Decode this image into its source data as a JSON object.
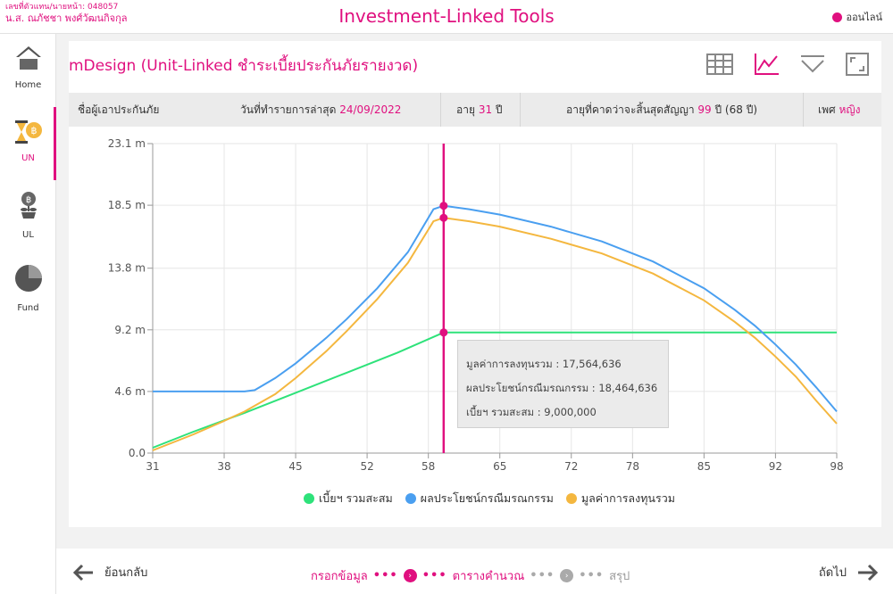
{
  "header": {
    "agent_code": "เลขที่ตัวแทน/นายหน้า: 048057",
    "agent_name": "น.ส. ณภัชชา  พงศ์วัฒนกิจกุล",
    "app_title": "Investment-Linked Tools",
    "status_label": "ออนไลน์",
    "status_color": "#e0107f"
  },
  "sidebar": {
    "items": [
      {
        "label": "Home",
        "icon": "home-icon",
        "active": false
      },
      {
        "label": "UN",
        "icon": "hourglass-coin-icon",
        "active": true
      },
      {
        "label": "UL",
        "icon": "money-plant-icon",
        "active": false
      },
      {
        "label": "Fund",
        "icon": "pie-chart-icon",
        "active": false
      }
    ]
  },
  "page": {
    "title": "mDesign (Unit-Linked ชำระเบี้ยประกันภัยรายงวด)",
    "tools": [
      "table-icon",
      "line-chart-icon",
      "filter-icon",
      "expand-icon"
    ]
  },
  "info": {
    "insured_label": "ชื่อผู้เอาประกันภัย",
    "date_label": "วันที่ทำรายการล่าสุด",
    "date_value": "24/09/2022",
    "age_label": "อายุ",
    "age_value": "31",
    "age_unit": "ปี",
    "end_age_label": "อายุที่คาดว่าจะสิ้นสุดสัญญา",
    "end_age_value": "99",
    "end_age_unit": "ปี (68 ปี)",
    "gender_label": "เพศ",
    "gender_value": "หญิง"
  },
  "tooltip": {
    "line1": "มูลค่าการลงทุนรวม : 17,564,636",
    "line2": "ผลประโยชน์กรณีมรณกรรม : 18,464,636",
    "line3": "เบี้ยฯ รวมสะสม : 9,000,000"
  },
  "chart_data": {
    "type": "line",
    "xlabel": "",
    "ylabel": "",
    "x_ticks": [
      31,
      38,
      45,
      52,
      58,
      65,
      72,
      78,
      85,
      92,
      98
    ],
    "y_ticks": [
      "0.0",
      "4.6 m",
      "9.2 m",
      "13.8 m",
      "18.5 m",
      "23.1 m"
    ],
    "y_tick_values": [
      0,
      4.6,
      9.2,
      13.8,
      18.5,
      23.1
    ],
    "xlim": [
      31,
      98
    ],
    "ylim": [
      0,
      23.1
    ],
    "grid": true,
    "legend_position": "bottom",
    "cursor_x": 59.5,
    "cursor_color": "#e0107f",
    "series": [
      {
        "name": "เบี้ยฯ รวมสะสม",
        "color": "#2ee27a",
        "x": [
          31,
          35,
          40,
          45,
          50,
          55,
          59.5,
          65,
          70,
          75,
          80,
          85,
          90,
          95,
          98
        ],
        "y": [
          0.4,
          1.6,
          3.0,
          4.5,
          6.0,
          7.5,
          9.0,
          9.0,
          9.0,
          9.0,
          9.0,
          9.0,
          9.0,
          9.0,
          9.0
        ]
      },
      {
        "name": "ผลประโยชน์กรณีมรณกรรม",
        "color": "#4a9ff0",
        "x": [
          31,
          35,
          40,
          41,
          43,
          45,
          48,
          50,
          53,
          56,
          58.5,
          59.5,
          62,
          65,
          70,
          75,
          80,
          85,
          88,
          90,
          92,
          94,
          96,
          98
        ],
        "y": [
          4.6,
          4.6,
          4.6,
          4.7,
          5.6,
          6.7,
          8.6,
          10.0,
          12.3,
          15.0,
          18.2,
          18.46,
          18.2,
          17.8,
          16.9,
          15.8,
          14.3,
          12.3,
          10.7,
          9.5,
          8.1,
          6.6,
          4.9,
          3.1
        ]
      },
      {
        "name": "มูลค่าการลงทุนรวม",
        "color": "#f4b73f",
        "x": [
          31,
          35,
          38,
          40,
          43,
          45,
          48,
          50,
          53,
          56,
          58.5,
          59.5,
          62,
          65,
          70,
          75,
          80,
          85,
          88,
          90,
          92,
          94,
          96,
          98
        ],
        "y": [
          0.2,
          1.4,
          2.4,
          3.1,
          4.4,
          5.6,
          7.6,
          9.1,
          11.5,
          14.2,
          17.3,
          17.56,
          17.3,
          16.9,
          16.0,
          14.9,
          13.4,
          11.4,
          9.8,
          8.6,
          7.2,
          5.7,
          3.9,
          2.2
        ]
      }
    ],
    "cursor_values": [
      9.0,
      18.46,
      17.56
    ]
  },
  "legend": [
    {
      "label": "เบี้ยฯ รวมสะสม",
      "color": "#2ee27a"
    },
    {
      "label": "ผลประโยชน์กรณีมรณกรรม",
      "color": "#4a9ff0"
    },
    {
      "label": "มูลค่าการลงทุนรวม",
      "color": "#f4b73f"
    }
  ],
  "footer": {
    "back_label": "ย้อนกลับ",
    "next_label": "ถัดไป",
    "step1": "กรอกข้อมูล",
    "step2": "ตารางคำนวณ",
    "step3": "สรุป"
  }
}
